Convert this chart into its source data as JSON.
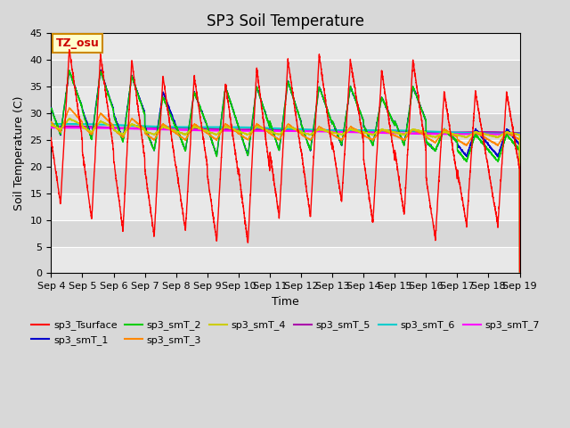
{
  "title": "SP3 Soil Temperature",
  "xlabel": "Time",
  "ylabel": "Soil Temperature (C)",
  "ylim": [
    0,
    45
  ],
  "tz_label": "TZ_osu",
  "series_colors": {
    "sp3_Tsurface": "#ff0000",
    "sp3_smT_1": "#0000cc",
    "sp3_smT_2": "#00cc00",
    "sp3_smT_3": "#ff8800",
    "sp3_smT_4": "#cccc00",
    "sp3_smT_5": "#aa00aa",
    "sp3_smT_6": "#00cccc",
    "sp3_smT_7": "#ff00ff"
  },
  "fig_bg": "#d8d8d8",
  "plot_bg": "#e0e0e0",
  "grid_color": "#ffffff",
  "title_fontsize": 12,
  "tick_label_fontsize": 8,
  "legend_fontsize": 8,
  "tick_positions": [
    0,
    1,
    2,
    3,
    4,
    5,
    6,
    7,
    8,
    9,
    10,
    11,
    12,
    13,
    14,
    15
  ],
  "tick_labels": [
    "Sep 4",
    "Sep 5",
    "Sep 6",
    "Sep 7",
    "Sep 8",
    "Sep 9",
    "Sep 10",
    "Sep 11",
    "Sep 12",
    "Sep 13",
    "Sep 14",
    "Sep 15",
    "Sep 16",
    "Sep 17",
    "Sep 18",
    "Sep 19"
  ]
}
